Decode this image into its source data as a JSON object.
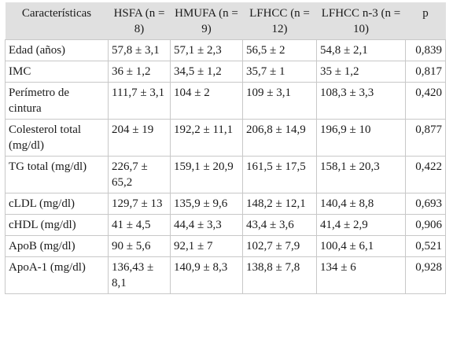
{
  "table": {
    "headers": [
      "Características",
      "HSFA (n = 8)",
      "HMUFA (n = 9)",
      "LFHCC (n = 12)",
      "LFHCC n-3 (n = 10)",
      "p"
    ],
    "rows": [
      [
        "Edad (años)",
        "57,8 ± 3,1",
        "57,1 ± 2,3",
        "56,5 ± 2",
        "54,8 ± 2,1",
        "0,839"
      ],
      [
        "IMC",
        "36 ± 1,2",
        "34,5 ± 1,2",
        "35,7 ± 1",
        "35 ± 1,2",
        "0,817"
      ],
      [
        "Perímetro de cintura",
        "111,7 ± 3,1",
        "104 ± 2",
        "109 ± 3,1",
        "108,3 ± 3,3",
        "0,420"
      ],
      [
        "Colesterol total (mg/dl)",
        "204 ± 19",
        "192,2 ± 11,1",
        "206,8 ± 14,9",
        "196,9 ± 10",
        "0,877"
      ],
      [
        "TG total (mg/dl)",
        "226,7 ± 65,2",
        "159,1 ± 20,9",
        "161,5 ± 17,5",
        "158,1 ± 20,3",
        "0,422"
      ],
      [
        "cLDL (mg/dl)",
        "129,7 ± 13",
        "135,9 ± 9,6",
        "148,2 ± 12,1",
        "140,4 ± 8,8",
        "0,693"
      ],
      [
        "cHDL (mg/dl)",
        "41 ± 4,5",
        "44,4 ± 3,3",
        "43,4 ± 3,6",
        "41,4 ± 2,9",
        "0,906"
      ],
      [
        "ApoB (mg/dl)",
        "90 ± 5,6",
        "92,1 ± 7",
        "102,7 ± 7,9",
        "100,4 ± 6,1",
        "0,521"
      ],
      [
        "ApoA-1 (mg/dl)",
        "136,43 ± 8,1",
        "140,9 ± 8,3",
        "138,8 ± 7,8",
        "134 ± 6",
        "0,928"
      ]
    ]
  }
}
